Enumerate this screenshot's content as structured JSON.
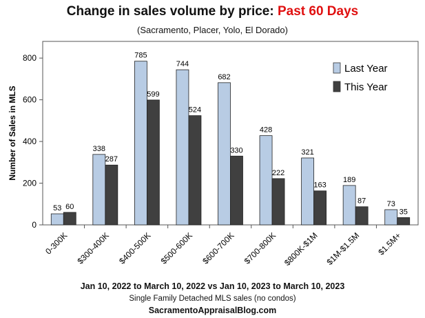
{
  "header": {
    "title_main": "Change in sales volume by price: ",
    "title_highlight": "Past 60 Days",
    "subtitle": "(Sacramento,  Placer, Yolo, El Dorado)"
  },
  "footer": {
    "dates": "Jan 10, 2022  to March 10, 2022  vs Jan 10, 2023  to March 10, 2023",
    "note": "Single Family Detached MLS  sales (no condos)",
    "site": "SacramentoAppraisalBlog.com"
  },
  "colors": {
    "last_year": "#b8cce4",
    "this_year": "#404040",
    "title_highlight": "#e01010"
  },
  "chart_data": {
    "type": "bar",
    "categories": [
      "0-300K",
      "$300-400K",
      "$400-500K",
      "$500-600K",
      "$600-700K",
      "$700-800K",
      "$800K-$1M",
      "$1M-$1.5M",
      "$1.5M+"
    ],
    "series": [
      {
        "name": "Last Year",
        "values": [
          53,
          338,
          785,
          744,
          682,
          428,
          321,
          189,
          73
        ]
      },
      {
        "name": "This Year",
        "values": [
          60,
          287,
          599,
          524,
          330,
          222,
          163,
          87,
          35
        ]
      }
    ],
    "ylabel": "Number of Sales in MLS",
    "xlabel": "",
    "ylim": [
      0,
      880
    ],
    "yticks": [
      0,
      200,
      400,
      600,
      800
    ],
    "legend_position": "top-right",
    "data_labels": true,
    "grid": false
  }
}
